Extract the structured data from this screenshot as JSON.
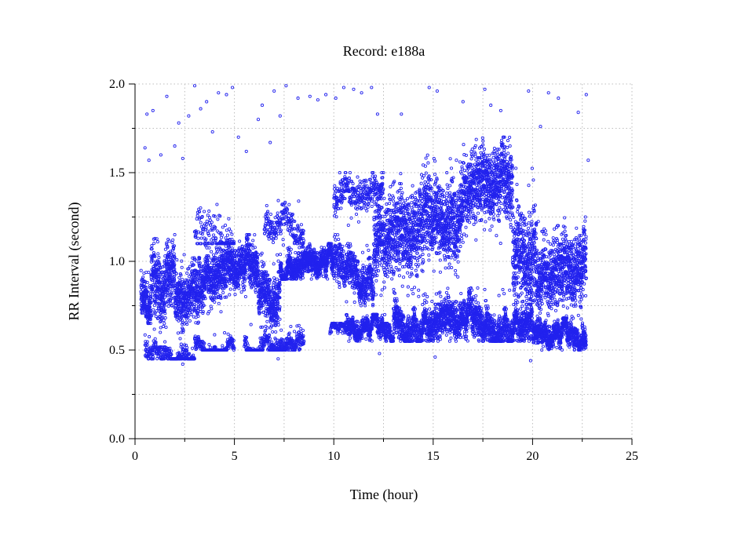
{
  "chart_data": {
    "type": "scatter",
    "title": "Record:  e188a",
    "xlabel": "Time (hour)",
    "ylabel": "RR Interval (second)",
    "xlim": [
      0,
      25
    ],
    "ylim": [
      0.0,
      2.0
    ],
    "xticks": [
      0,
      5,
      10,
      15,
      20,
      25
    ],
    "xtick_labels": [
      "0",
      "5",
      "10",
      "15",
      "20",
      "25"
    ],
    "yticks": [
      0.0,
      0.5,
      1.0,
      1.5,
      2.0
    ],
    "ytick_labels": [
      "0.0",
      "0.5",
      "1.0",
      "1.5",
      "2.0"
    ],
    "grid": true,
    "marker": "open-circle",
    "color": "#2222ee",
    "bands": [
      {
        "x_start": 0.3,
        "x_end": 0.8,
        "y_min": 0.65,
        "y_max": 1.0,
        "mean": 0.82,
        "density": 1.0
      },
      {
        "x_start": 0.8,
        "x_end": 2.0,
        "y_min": 0.6,
        "y_max": 1.15,
        "mean": 0.9,
        "density": 1.0
      },
      {
        "x_start": 2.0,
        "x_end": 3.2,
        "y_min": 0.6,
        "y_max": 1.05,
        "mean": 0.8,
        "density": 1.0
      },
      {
        "x_start": 3.2,
        "x_end": 4.6,
        "y_min": 0.7,
        "y_max": 1.15,
        "mean": 0.95,
        "density": 1.0
      },
      {
        "x_start": 4.6,
        "x_end": 6.2,
        "y_min": 0.8,
        "y_max": 1.15,
        "mean": 1.0,
        "density": 1.0
      },
      {
        "x_start": 6.2,
        "x_end": 7.3,
        "y_min": 0.6,
        "y_max": 1.05,
        "mean": 0.85,
        "density": 1.0
      },
      {
        "x_start": 7.3,
        "x_end": 10.0,
        "y_min": 0.9,
        "y_max": 1.1,
        "mean": 1.0,
        "density": 1.0
      },
      {
        "x_start": 10.0,
        "x_end": 10.6,
        "y_min": 0.8,
        "y_max": 1.15,
        "mean": 1.0,
        "density": 0.7
      },
      {
        "x_start": 10.6,
        "x_end": 12.0,
        "y_min": 0.75,
        "y_max": 1.1,
        "mean": 0.95,
        "density": 0.8
      },
      {
        "x_start": 12.0,
        "x_end": 14.5,
        "y_min": 0.8,
        "y_max": 1.5,
        "mean": 1.1,
        "density": 1.0
      },
      {
        "x_start": 14.5,
        "x_end": 16.5,
        "y_min": 0.9,
        "y_max": 1.6,
        "mean": 1.3,
        "density": 1.0
      },
      {
        "x_start": 16.5,
        "x_end": 19.0,
        "y_min": 1.1,
        "y_max": 1.7,
        "mean": 1.45,
        "density": 1.0
      },
      {
        "x_start": 19.0,
        "x_end": 20.2,
        "y_min": 0.7,
        "y_max": 1.55,
        "mean": 1.1,
        "density": 1.0
      },
      {
        "x_start": 20.2,
        "x_end": 22.7,
        "y_min": 0.65,
        "y_max": 1.25,
        "mean": 0.95,
        "density": 1.0
      },
      {
        "x_start": 0.5,
        "x_end": 3.0,
        "y_min": 0.45,
        "y_max": 0.6,
        "mean": 0.52,
        "density": 0.35
      },
      {
        "x_start": 3.0,
        "x_end": 5.0,
        "y_min": 0.5,
        "y_max": 0.6,
        "mean": 0.55,
        "density": 0.35
      },
      {
        "x_start": 5.5,
        "x_end": 8.5,
        "y_min": 0.5,
        "y_max": 0.65,
        "mean": 0.56,
        "density": 0.4
      },
      {
        "x_start": 9.8,
        "x_end": 10.6,
        "y_min": 0.58,
        "y_max": 0.65,
        "mean": 0.61,
        "density": 0.3
      },
      {
        "x_start": 10.6,
        "x_end": 13.0,
        "y_min": 0.55,
        "y_max": 0.7,
        "mean": 0.62,
        "density": 0.7
      },
      {
        "x_start": 13.0,
        "x_end": 20.0,
        "y_min": 0.55,
        "y_max": 0.85,
        "mean": 0.68,
        "density": 0.9
      },
      {
        "x_start": 20.0,
        "x_end": 22.7,
        "y_min": 0.5,
        "y_max": 0.68,
        "mean": 0.58,
        "density": 0.8
      },
      {
        "x_start": 3.0,
        "x_end": 5.0,
        "y_min": 1.1,
        "y_max": 1.55,
        "mean": 1.2,
        "density": 0.2
      },
      {
        "x_start": 6.5,
        "x_end": 8.5,
        "y_min": 1.1,
        "y_max": 1.35,
        "mean": 1.2,
        "density": 0.3
      },
      {
        "x_start": 10.0,
        "x_end": 12.5,
        "y_min": 1.2,
        "y_max": 1.5,
        "mean": 1.35,
        "density": 0.35
      }
    ],
    "outliers": [
      [
        0.5,
        1.64
      ],
      [
        0.6,
        1.83
      ],
      [
        0.7,
        1.57
      ],
      [
        0.9,
        1.85
      ],
      [
        1.3,
        1.6
      ],
      [
        1.6,
        1.93
      ],
      [
        2.0,
        1.65
      ],
      [
        2.2,
        1.78
      ],
      [
        2.4,
        1.58
      ],
      [
        2.7,
        1.82
      ],
      [
        3.0,
        1.99
      ],
      [
        3.3,
        1.86
      ],
      [
        3.6,
        1.9
      ],
      [
        3.9,
        1.73
      ],
      [
        4.2,
        1.95
      ],
      [
        4.6,
        1.94
      ],
      [
        4.9,
        1.98
      ],
      [
        5.2,
        1.7
      ],
      [
        5.6,
        1.62
      ],
      [
        6.2,
        1.8
      ],
      [
        6.4,
        1.88
      ],
      [
        6.8,
        1.67
      ],
      [
        7.0,
        1.96
      ],
      [
        7.3,
        1.82
      ],
      [
        7.6,
        1.99
      ],
      [
        8.2,
        1.92
      ],
      [
        8.8,
        1.93
      ],
      [
        9.2,
        1.91
      ],
      [
        9.6,
        1.94
      ],
      [
        10.1,
        1.92
      ],
      [
        10.5,
        1.98
      ],
      [
        11.0,
        1.97
      ],
      [
        11.4,
        1.95
      ],
      [
        11.9,
        1.98
      ],
      [
        12.2,
        1.83
      ],
      [
        13.4,
        1.83
      ],
      [
        14.8,
        1.98
      ],
      [
        15.2,
        1.96
      ],
      [
        16.5,
        1.9
      ],
      [
        17.6,
        1.97
      ],
      [
        17.9,
        1.88
      ],
      [
        18.4,
        1.85
      ],
      [
        19.8,
        1.96
      ],
      [
        20.4,
        1.76
      ],
      [
        20.8,
        1.95
      ],
      [
        21.3,
        1.92
      ],
      [
        22.3,
        1.84
      ],
      [
        22.7,
        1.94
      ],
      [
        22.8,
        1.57
      ],
      [
        19.9,
        0.44
      ],
      [
        15.1,
        0.46
      ],
      [
        2.4,
        0.42
      ],
      [
        7.2,
        0.45
      ],
      [
        12.3,
        0.48
      ]
    ]
  }
}
